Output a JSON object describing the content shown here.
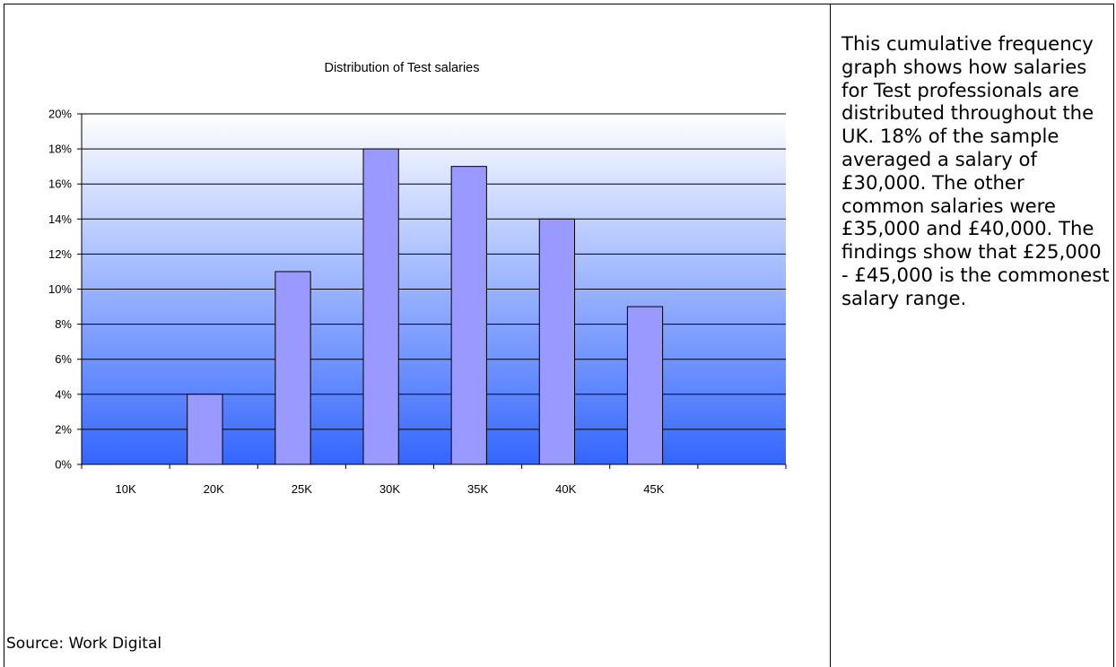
{
  "chart_data": {
    "type": "bar",
    "title": "Distribution of Test salaries",
    "xlabel": "",
    "ylabel": "",
    "categories": [
      "10K",
      "20K",
      "25K",
      "30K",
      "35K",
      "40K",
      "45K",
      ""
    ],
    "values": [
      0,
      4,
      11,
      18,
      17,
      14,
      9,
      0
    ],
    "ylim": [
      0,
      20
    ],
    "y_ticks": [
      "0%",
      "2%",
      "4%",
      "6%",
      "8%",
      "10%",
      "12%",
      "14%",
      "16%",
      "18%",
      "20%"
    ],
    "y_unit": "%",
    "grid": true,
    "legend": "none",
    "colors": {
      "bar_fill": "#9999ff",
      "bar_stroke": "#000000",
      "plot_top": "#ffffff",
      "plot_bottom": "#3366ff"
    }
  },
  "description": "This cumulative frequency graph shows how salaries for Test professionals are distributed throughout the UK. 18% of the sample averaged a salary of £30,000.  The other common salaries were £35,000 and £40,000.  The findings show that £25,000 - £45,000 is the commonest salary range.",
  "source": "Source: Work Digital"
}
